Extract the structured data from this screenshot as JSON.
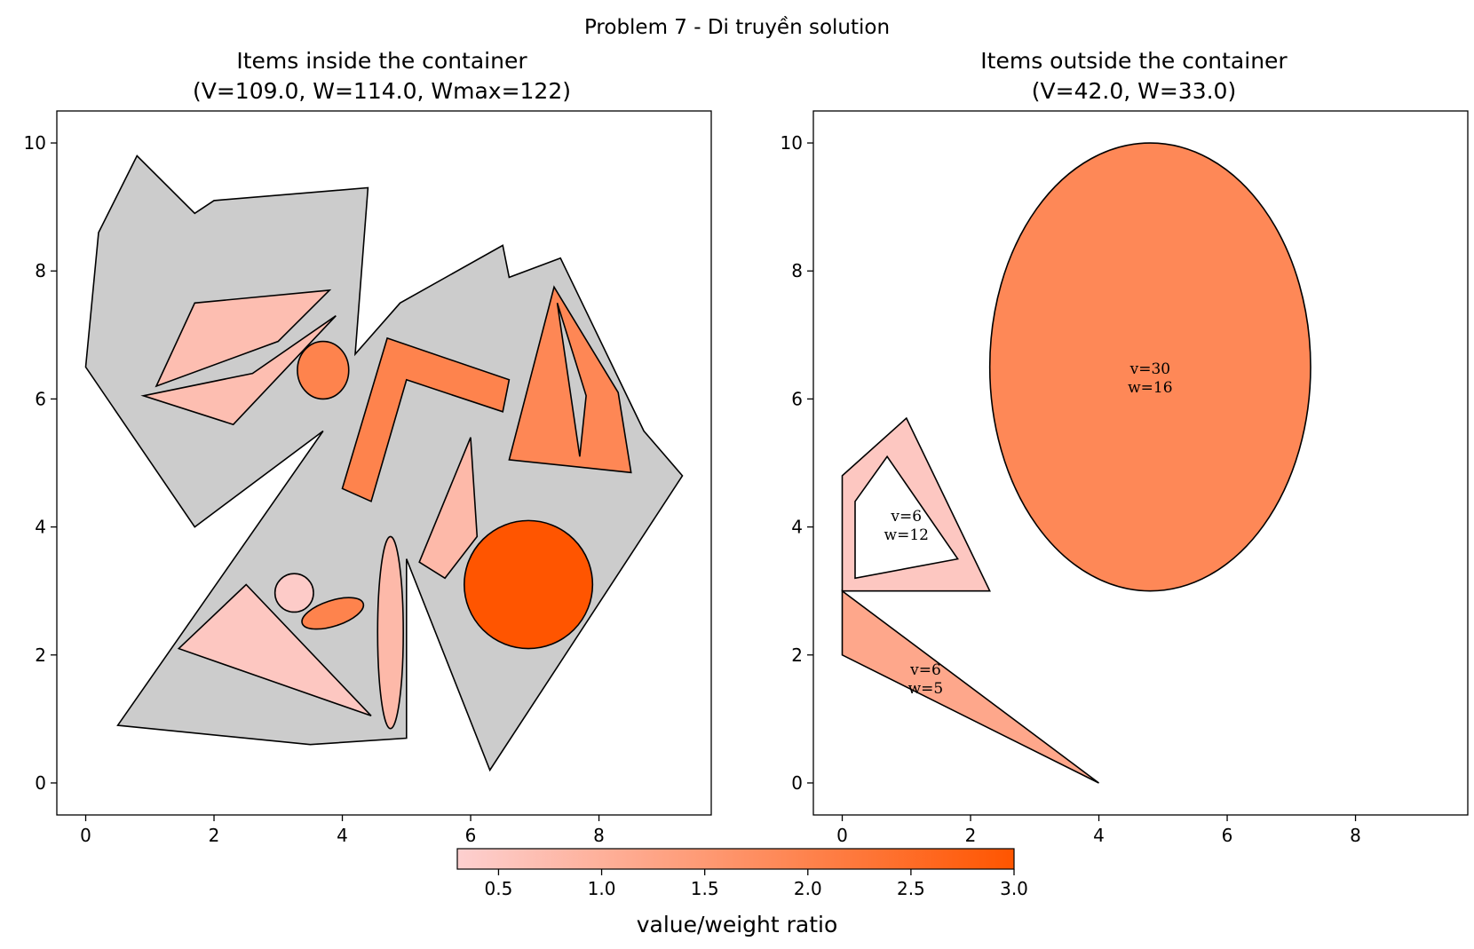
{
  "figure": {
    "suptitle": "Problem 7 - Di truyền solution"
  },
  "chart_data": [
    {
      "type": "polygon-packing",
      "title_line1": "Items inside the container",
      "title_line2": "(V=109.0, W=114.0, Wmax=122)",
      "xlim": [
        -0.45,
        9.75
      ],
      "ylim": [
        -0.5,
        10.5
      ],
      "xticks": [
        0,
        2,
        4,
        6,
        8
      ],
      "yticks": [
        0,
        2,
        4,
        6,
        8,
        10
      ],
      "container": {
        "fill": "#cccccc",
        "outer": [
          [
            0,
            6.5
          ],
          [
            0.2,
            8.6
          ],
          [
            0.8,
            9.8
          ],
          [
            1.7,
            8.9
          ],
          [
            2,
            9.1
          ],
          [
            4.4,
            9.3
          ],
          [
            4.2,
            6.7
          ],
          [
            4.9,
            7.5
          ],
          [
            6.5,
            8.4
          ],
          [
            6.6,
            7.9
          ],
          [
            7.4,
            8.2
          ],
          [
            8.7,
            5.5
          ],
          [
            9.3,
            4.8
          ],
          [
            6.3,
            0.2
          ],
          [
            5,
            3.5
          ],
          [
            5,
            0.7
          ],
          [
            3.5,
            0.6
          ],
          [
            0.5,
            0.9
          ],
          [
            3.7,
            5.5
          ],
          [
            1.7,
            4
          ]
        ]
      },
      "items": [
        {
          "shape": "polygon",
          "ratio": 0.7,
          "points": [
            [
              1.1,
              6.2
            ],
            [
              1.7,
              7.5
            ],
            [
              3.8,
              7.7
            ],
            [
              3,
              6.9
            ]
          ]
        },
        {
          "shape": "polygon",
          "ratio": 0.7,
          "points": [
            [
              0.9,
              6.05
            ],
            [
              2.6,
              6.4
            ],
            [
              3.9,
              7.3
            ],
            [
              2.3,
              5.6
            ]
          ]
        },
        {
          "shape": "ellipse",
          "ratio": 2.0,
          "cx": 3.7,
          "cy": 6.45,
          "rx": 0.4,
          "ry": 0.45
        },
        {
          "shape": "polygon",
          "ratio": 2.0,
          "points": [
            [
              4.7,
              6.95
            ],
            [
              6.6,
              6.3
            ],
            [
              6.5,
              5.8
            ],
            [
              5,
              6.3
            ],
            [
              4.45,
              4.4
            ],
            [
              4,
              4.6
            ]
          ]
        },
        {
          "shape": "polygon",
          "ratio": 1.9,
          "points": [
            [
              7.3,
              7.75
            ],
            [
              8.3,
              6.1
            ],
            [
              8.5,
              4.85
            ],
            [
              6.6,
              5.05
            ]
          ],
          "holes": [
            [
              [
                7.35,
                7.5
              ],
              [
                7.8,
                6.05
              ],
              [
                7.7,
                5.1
              ]
            ]
          ]
        },
        {
          "shape": "polygon",
          "ratio": 0.8,
          "points": [
            [
              6,
              5.4
            ],
            [
              6.1,
              3.85
            ],
            [
              5.6,
              3.2
            ],
            [
              5.2,
              3.45
            ]
          ]
        },
        {
          "shape": "ellipse",
          "ratio": 3.0,
          "cx": 6.9,
          "cy": 3.1,
          "rx": 1.0,
          "ry": 1.0
        },
        {
          "shape": "ellipse",
          "ratio": 0.4,
          "cx": 3.25,
          "cy": 2.97,
          "rx": 0.3,
          "ry": 0.3
        },
        {
          "shape": "ellipse",
          "ratio": 2.0,
          "cx": 3.85,
          "cy": 2.65,
          "rx": 0.5,
          "ry": 0.2,
          "angle": -18
        },
        {
          "shape": "ellipse",
          "ratio": 0.8,
          "cx": 4.75,
          "cy": 2.35,
          "rx": 0.2,
          "ry": 1.5
        },
        {
          "shape": "polygon",
          "ratio": 0.5,
          "points": [
            [
              1.45,
              2.1
            ],
            [
              2.5,
              3.1
            ],
            [
              4.45,
              1.05
            ]
          ]
        }
      ]
    },
    {
      "type": "polygon-packing",
      "title_line1": "Items outside the container",
      "title_line2": "(V=42.0, W=33.0)",
      "xlim": [
        -0.45,
        9.75
      ],
      "ylim": [
        -0.5,
        10.5
      ],
      "xticks": [
        0,
        2,
        4,
        6,
        8
      ],
      "yticks": [
        0,
        2,
        4,
        6,
        8,
        10
      ],
      "items": [
        {
          "shape": "ellipse",
          "ratio": 1.875,
          "cx": 4.8,
          "cy": 6.5,
          "rx": 2.5,
          "ry": 3.5,
          "label_v": "v=30",
          "label_w": "w=16",
          "label_at": [
            4.8,
            6.35
          ]
        },
        {
          "shape": "polygon",
          "ratio": 0.5,
          "points": [
            [
              0,
              4.8
            ],
            [
              1.0,
              5.7
            ],
            [
              2.3,
              3.0
            ],
            [
              0,
              3.0
            ]
          ],
          "holes": [
            [
              [
                0.2,
                4.4
              ],
              [
                0.7,
                5.1
              ],
              [
                1.8,
                3.5
              ],
              [
                0.2,
                3.2
              ]
            ]
          ],
          "label_v": "v=6",
          "label_w": "w=12",
          "label_at": [
            1.0,
            4.05
          ]
        },
        {
          "shape": "polygon",
          "ratio": 1.2,
          "points": [
            [
              0,
              3.0
            ],
            [
              0,
              2.0
            ],
            [
              4,
              0
            ]
          ],
          "label_v": "v=6",
          "label_w": "w=5",
          "label_at": [
            1.3,
            1.65
          ]
        }
      ]
    }
  ],
  "colorbar": {
    "label": "value/weight ratio",
    "min": 0.3,
    "max": 3.0,
    "ticks": [
      0.5,
      1.0,
      1.5,
      2.0,
      2.5,
      3.0
    ],
    "tick_labels": [
      "0.5",
      "1.0",
      "1.5",
      "2.0",
      "2.5",
      "3.0"
    ],
    "color_low": "#fdd0d0",
    "color_high": "#ff5500"
  }
}
